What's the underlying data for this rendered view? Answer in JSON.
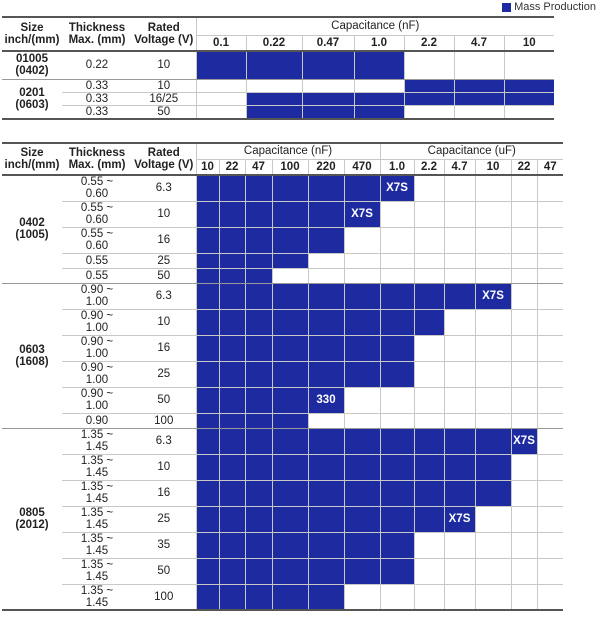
{
  "legend": {
    "label": "Mass Production",
    "color": "#1e2ba0"
  },
  "table1": {
    "headers": {
      "size": [
        "Size",
        "inch/(mm)"
      ],
      "thickness": [
        "Thickness",
        "Max. (mm)"
      ],
      "voltage": [
        "Rated",
        "Voltage (V)"
      ],
      "cap_group": "Capacitance (nF)"
    },
    "cap_values": [
      "0.1",
      "0.22",
      "0.47",
      "1.0",
      "2.2",
      "4.7",
      "10"
    ],
    "groups": [
      {
        "size": [
          "01005",
          "(0402)"
        ],
        "rows": [
          {
            "thickness": [
              "0.22"
            ],
            "voltage": "10",
            "fill": [
              1,
              1,
              1,
              1,
              0,
              0,
              0
            ],
            "labels": {}
          }
        ]
      },
      {
        "size": [
          "0201",
          "(0603)"
        ],
        "rows": [
          {
            "thickness": [
              "0.33"
            ],
            "voltage": "10",
            "fill": [
              0,
              0,
              0,
              0,
              1,
              1,
              1
            ],
            "labels": {}
          },
          {
            "thickness": [
              "0.33"
            ],
            "voltage": "16/25",
            "fill": [
              0,
              1,
              1,
              1,
              1,
              1,
              1
            ],
            "labels": {}
          },
          {
            "thickness": [
              "0.33"
            ],
            "voltage": "50",
            "fill": [
              0,
              1,
              1,
              1,
              0,
              0,
              0
            ],
            "labels": {}
          }
        ]
      }
    ]
  },
  "table2": {
    "headers": {
      "size": [
        "Size",
        "inch/(mm)"
      ],
      "thickness": [
        "Thickness",
        "Max. (mm)"
      ],
      "voltage": [
        "Rated",
        "Voltage (V)"
      ],
      "cap_group_nf": "Capacitance (nF)",
      "cap_group_uf": "Capacitance (uF)"
    },
    "cap_values_nf": [
      "10",
      "22",
      "47",
      "100",
      "220",
      "470"
    ],
    "cap_values_uf": [
      "1.0",
      "2.2",
      "4.7",
      "10",
      "22",
      "47"
    ],
    "groups": [
      {
        "size": [
          "0402",
          "(1005)"
        ],
        "rows": [
          {
            "thickness": [
              "0.55 ~",
              "0.60"
            ],
            "voltage": "6.3",
            "fill": [
              1,
              1,
              1,
              1,
              1,
              1,
              1,
              0,
              0,
              0,
              0,
              0
            ],
            "labels": {
              "6": "X7S"
            }
          },
          {
            "thickness": [
              "0.55 ~",
              "0.60"
            ],
            "voltage": "10",
            "fill": [
              1,
              1,
              1,
              1,
              1,
              1,
              0,
              0,
              0,
              0,
              0,
              0
            ],
            "labels": {
              "5": "X7S"
            }
          },
          {
            "thickness": [
              "0.55 ~",
              "0.60"
            ],
            "voltage": "16",
            "fill": [
              1,
              1,
              1,
              1,
              1,
              0,
              0,
              0,
              0,
              0,
              0,
              0
            ],
            "labels": {}
          },
          {
            "thickness": [
              "0.55"
            ],
            "voltage": "25",
            "fill": [
              1,
              1,
              1,
              1,
              0,
              0,
              0,
              0,
              0,
              0,
              0,
              0
            ],
            "labels": {}
          },
          {
            "thickness": [
              "0.55"
            ],
            "voltage": "50",
            "fill": [
              1,
              1,
              1,
              0,
              0,
              0,
              0,
              0,
              0,
              0,
              0,
              0
            ],
            "labels": {}
          }
        ]
      },
      {
        "size": [
          "0603",
          "(1608)"
        ],
        "rows": [
          {
            "thickness": [
              "0.90 ~",
              "1.00"
            ],
            "voltage": "6.3",
            "fill": [
              1,
              1,
              1,
              1,
              1,
              1,
              1,
              1,
              1,
              1,
              0,
              0
            ],
            "labels": {
              "9": "X7S"
            }
          },
          {
            "thickness": [
              "0.90 ~",
              "1.00"
            ],
            "voltage": "10",
            "fill": [
              1,
              1,
              1,
              1,
              1,
              1,
              1,
              1,
              0,
              0,
              0,
              0
            ],
            "labels": {}
          },
          {
            "thickness": [
              "0.90 ~",
              "1.00"
            ],
            "voltage": "16",
            "fill": [
              1,
              1,
              1,
              1,
              1,
              1,
              1,
              0,
              0,
              0,
              0,
              0
            ],
            "labels": {}
          },
          {
            "thickness": [
              "0.90 ~",
              "1.00"
            ],
            "voltage": "25",
            "fill": [
              1,
              1,
              1,
              1,
              1,
              1,
              1,
              0,
              0,
              0,
              0,
              0
            ],
            "labels": {}
          },
          {
            "thickness": [
              "0.90 ~",
              "1.00"
            ],
            "voltage": "50",
            "fill": [
              1,
              1,
              1,
              1,
              1,
              0,
              0,
              0,
              0,
              0,
              0,
              0
            ],
            "labels": {
              "4": "330"
            }
          },
          {
            "thickness": [
              "0.90"
            ],
            "voltage": "100",
            "fill": [
              1,
              1,
              1,
              1,
              0,
              0,
              0,
              0,
              0,
              0,
              0,
              0
            ],
            "labels": {}
          }
        ]
      },
      {
        "size": [
          "0805",
          "(2012)"
        ],
        "rows": [
          {
            "thickness": [
              "1.35 ~",
              "1.45"
            ],
            "voltage": "6.3",
            "fill": [
              1,
              1,
              1,
              1,
              1,
              1,
              1,
              1,
              1,
              1,
              1,
              0
            ],
            "labels": {
              "10": "X7S"
            }
          },
          {
            "thickness": [
              "1.35 ~",
              "1.45"
            ],
            "voltage": "10",
            "fill": [
              1,
              1,
              1,
              1,
              1,
              1,
              1,
              1,
              1,
              1,
              0,
              0
            ],
            "labels": {}
          },
          {
            "thickness": [
              "1.35 ~",
              "1.45"
            ],
            "voltage": "16",
            "fill": [
              1,
              1,
              1,
              1,
              1,
              1,
              1,
              1,
              1,
              1,
              0,
              0
            ],
            "labels": {}
          },
          {
            "thickness": [
              "1.35 ~",
              "1.45"
            ],
            "voltage": "25",
            "fill": [
              1,
              1,
              1,
              1,
              1,
              1,
              1,
              1,
              1,
              0,
              0,
              0
            ],
            "labels": {
              "8": "X7S"
            }
          },
          {
            "thickness": [
              "1.35 ~",
              "1.45"
            ],
            "voltage": "35",
            "fill": [
              1,
              1,
              1,
              1,
              1,
              1,
              1,
              0,
              0,
              0,
              0,
              0
            ],
            "labels": {}
          },
          {
            "thickness": [
              "1.35 ~",
              "1.45"
            ],
            "voltage": "50",
            "fill": [
              1,
              1,
              1,
              1,
              1,
              1,
              1,
              0,
              0,
              0,
              0,
              0
            ],
            "labels": {}
          },
          {
            "thickness": [
              "1.35 ~",
              "1.45"
            ],
            "voltage": "100",
            "fill": [
              1,
              1,
              1,
              1,
              1,
              0,
              0,
              0,
              0,
              0,
              0,
              0
            ],
            "labels": {}
          }
        ]
      }
    ]
  }
}
